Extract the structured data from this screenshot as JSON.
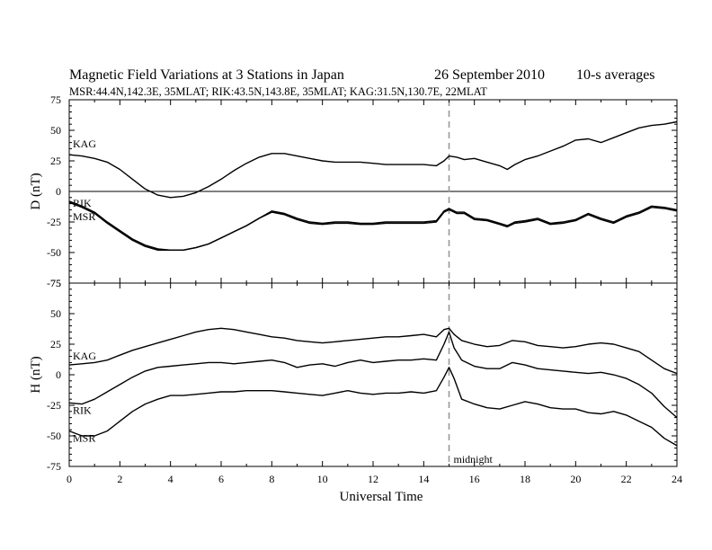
{
  "header": {
    "title": "Magnetic Field Variations at 3 Stations in Japan",
    "date": "26 September",
    "year": "2010",
    "averaging": "10-s averages",
    "stations_line": "MSR:44.4N,142.3E, 35MLAT;  RIK:43.5N,143.8E, 35MLAT;  KAG:31.5N,130.7E, 22MLAT"
  },
  "annotations": {
    "midnight": "midnight"
  },
  "chart_data": [
    {
      "type": "line",
      "panel": "D",
      "ylabel": "D (nT)",
      "xlabel": "",
      "xlim": [
        0,
        24
      ],
      "ylim": [
        -75,
        75
      ],
      "yticks": [
        "75",
        "50",
        "25",
        "0",
        "-25",
        "-50",
        "-75"
      ],
      "zero_line": true,
      "midnight_marker_x": 15,
      "series": [
        {
          "name": "KAG",
          "x": [
            0,
            0.5,
            1,
            1.5,
            2,
            2.5,
            3,
            3.5,
            4,
            4.5,
            5,
            5.5,
            6,
            6.5,
            7,
            7.5,
            8,
            8.5,
            9,
            9.5,
            10,
            10.5,
            11,
            11.5,
            12,
            12.5,
            13,
            13.5,
            14,
            14.5,
            14.8,
            15,
            15.3,
            15.6,
            16,
            16.5,
            17,
            17.3,
            17.6,
            18,
            18.5,
            19,
            19.5,
            20,
            20.5,
            21,
            21.5,
            22,
            22.5,
            23,
            23.5,
            24
          ],
          "y": [
            30,
            29,
            27,
            24,
            18,
            10,
            2,
            -3,
            -5,
            -4,
            -1,
            4,
            10,
            17,
            23,
            28,
            31,
            31,
            29,
            27,
            25,
            24,
            24,
            24,
            23,
            22,
            22,
            22,
            22,
            21,
            25,
            29,
            28,
            26,
            27,
            24,
            21,
            18,
            22,
            26,
            29,
            33,
            37,
            42,
            43,
            40,
            44,
            48,
            52,
            54,
            55,
            57
          ]
        },
        {
          "name": "RIK",
          "x": [
            0,
            0.5,
            1,
            1.5,
            2,
            2.5,
            3,
            3.5,
            4,
            4.5,
            5,
            5.5,
            6,
            6.5,
            7,
            7.5,
            8,
            8.5,
            9,
            9.5,
            10,
            10.5,
            11,
            11.5,
            12,
            12.5,
            13,
            13.5,
            14,
            14.5,
            14.8,
            15,
            15.3,
            15.6,
            16,
            16.5,
            17,
            17.3,
            17.6,
            18,
            18.5,
            19,
            19.5,
            20,
            20.5,
            21,
            21.5,
            22,
            22.5,
            23,
            23.5,
            24
          ],
          "y": [
            -8,
            -12,
            -17,
            -25,
            -32,
            -39,
            -44,
            -47,
            -48,
            -48,
            -46,
            -43,
            -38,
            -33,
            -28,
            -22,
            -16,
            -18,
            -22,
            -25,
            -26,
            -25,
            -25,
            -26,
            -26,
            -25,
            -25,
            -25,
            -25,
            -24,
            -16,
            -14,
            -17,
            -17,
            -22,
            -23,
            -26,
            -28,
            -25,
            -24,
            -22,
            -26,
            -25,
            -23,
            -18,
            -22,
            -25,
            -20,
            -17,
            -12,
            -13,
            -15
          ]
        },
        {
          "name": "MSR",
          "x": [
            0,
            0.5,
            1,
            1.5,
            2,
            2.5,
            3,
            3.5,
            4,
            4.5,
            5,
            5.5,
            6,
            6.5,
            7,
            7.5,
            8,
            8.5,
            9,
            9.5,
            10,
            10.5,
            11,
            11.5,
            12,
            12.5,
            13,
            13.5,
            14,
            14.5,
            14.8,
            15,
            15.3,
            15.6,
            16,
            16.5,
            17,
            17.3,
            17.6,
            18,
            18.5,
            19,
            19.5,
            20,
            20.5,
            21,
            21.5,
            22,
            22.5,
            23,
            23.5,
            24
          ],
          "y": [
            -9,
            -13,
            -18,
            -26,
            -33,
            -40,
            -45,
            -48,
            -48,
            -48,
            -46,
            -43,
            -38,
            -33,
            -28,
            -22,
            -17,
            -19,
            -23,
            -26,
            -27,
            -26,
            -26,
            -27,
            -27,
            -26,
            -26,
            -26,
            -26,
            -25,
            -17,
            -15,
            -18,
            -18,
            -23,
            -24,
            -27,
            -29,
            -26,
            -25,
            -23,
            -27,
            -26,
            -24,
            -19,
            -23,
            -26,
            -21,
            -18,
            -13,
            -14,
            -16
          ]
        }
      ]
    },
    {
      "type": "line",
      "panel": "H",
      "ylabel": "H (nT)",
      "xlabel": "Universal Time",
      "xlim": [
        0,
        24
      ],
      "ylim": [
        -75,
        75
      ],
      "yticks": [
        "75",
        "50",
        "25",
        "0",
        "-25",
        "-50",
        "-75"
      ],
      "xticks": [
        "0",
        "2",
        "4",
        "6",
        "8",
        "10",
        "12",
        "14",
        "16",
        "18",
        "20",
        "22",
        "24"
      ],
      "midnight_marker_x": 15,
      "series": [
        {
          "name": "KAG",
          "x": [
            0,
            0.5,
            1,
            1.5,
            2,
            2.5,
            3,
            3.5,
            4,
            4.5,
            5,
            5.5,
            6,
            6.5,
            7,
            7.5,
            8,
            8.5,
            9,
            9.5,
            10,
            10.5,
            11,
            11.5,
            12,
            12.5,
            13,
            13.5,
            14,
            14.5,
            14.8,
            15,
            15.2,
            15.5,
            16,
            16.5,
            17,
            17.5,
            18,
            18.5,
            19,
            19.5,
            20,
            20.5,
            21,
            21.5,
            22,
            22.5,
            23,
            23.5,
            24
          ],
          "y": [
            8,
            9,
            10,
            12,
            16,
            20,
            23,
            26,
            29,
            32,
            35,
            37,
            38,
            37,
            35,
            33,
            31,
            30,
            28,
            27,
            26,
            27,
            28,
            29,
            30,
            31,
            31,
            32,
            33,
            31,
            37,
            38,
            33,
            28,
            25,
            23,
            24,
            28,
            27,
            24,
            23,
            22,
            23,
            25,
            26,
            25,
            22,
            19,
            12,
            5,
            1
          ]
        },
        {
          "name": "RIK",
          "x": [
            0,
            0.5,
            1,
            1.5,
            2,
            2.5,
            3,
            3.5,
            4,
            4.5,
            5,
            5.5,
            6,
            6.5,
            7,
            7.5,
            8,
            8.5,
            9,
            9.5,
            10,
            10.5,
            11,
            11.5,
            12,
            12.5,
            13,
            13.5,
            14,
            14.5,
            14.8,
            15,
            15.2,
            15.5,
            16,
            16.5,
            17,
            17.5,
            18,
            18.5,
            19,
            19.5,
            20,
            20.5,
            21,
            21.5,
            22,
            22.5,
            23,
            23.5,
            24
          ],
          "y": [
            -23,
            -24,
            -20,
            -14,
            -8,
            -2,
            3,
            6,
            7,
            8,
            9,
            10,
            10,
            9,
            10,
            11,
            12,
            10,
            6,
            8,
            9,
            7,
            10,
            12,
            10,
            11,
            12,
            12,
            13,
            12,
            25,
            35,
            22,
            12,
            7,
            5,
            5,
            10,
            8,
            5,
            4,
            3,
            2,
            1,
            2,
            0,
            -3,
            -8,
            -15,
            -26,
            -35
          ]
        },
        {
          "name": "MSR",
          "x": [
            0,
            0.5,
            1,
            1.5,
            2,
            2.5,
            3,
            3.5,
            4,
            4.5,
            5,
            5.5,
            6,
            6.5,
            7,
            7.5,
            8,
            8.5,
            9,
            9.5,
            10,
            10.5,
            11,
            11.5,
            12,
            12.5,
            13,
            13.5,
            14,
            14.5,
            14.8,
            15,
            15.2,
            15.5,
            16,
            16.5,
            17,
            17.5,
            18,
            18.5,
            19,
            19.5,
            20,
            20.5,
            21,
            21.5,
            22,
            22.5,
            23,
            23.5,
            24
          ],
          "y": [
            -46,
            -50,
            -50,
            -46,
            -38,
            -30,
            -24,
            -20,
            -17,
            -17,
            -16,
            -15,
            -14,
            -14,
            -13,
            -13,
            -13,
            -14,
            -15,
            -16,
            -17,
            -15,
            -13,
            -15,
            -16,
            -15,
            -15,
            -14,
            -15,
            -13,
            -2,
            6,
            -3,
            -20,
            -24,
            -27,
            -28,
            -25,
            -22,
            -24,
            -27,
            -28,
            -28,
            -31,
            -32,
            -30,
            -33,
            -38,
            -43,
            -52,
            -58
          ]
        }
      ]
    }
  ]
}
